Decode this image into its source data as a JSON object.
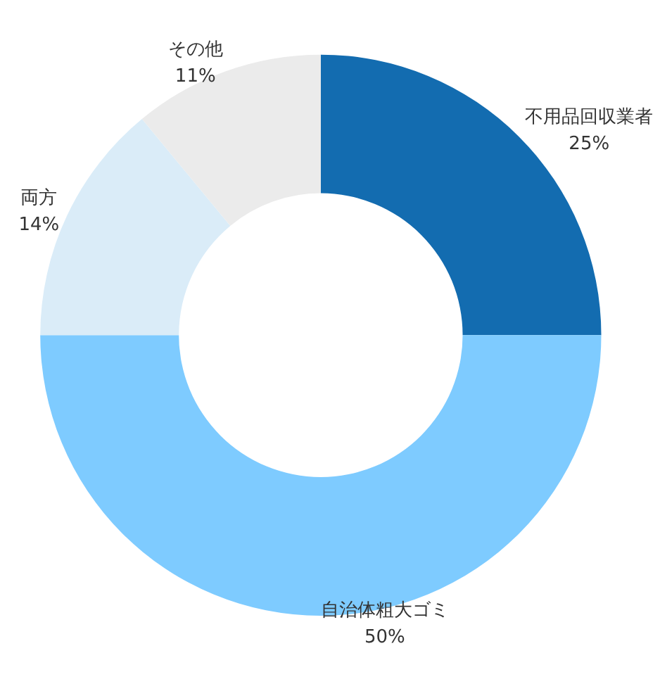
{
  "chart_data": {
    "type": "donut",
    "categories": [
      "不用品回収業者",
      "自治体粗大ゴミ",
      "両方",
      "その他"
    ],
    "values": [
      25,
      50,
      14,
      11
    ],
    "colors": [
      "#136cb0",
      "#7ecbff",
      "#daecf8",
      "#ebebeb"
    ],
    "value_labels": [
      "25%",
      "50%",
      "14%",
      "11%"
    ],
    "legend": false
  }
}
